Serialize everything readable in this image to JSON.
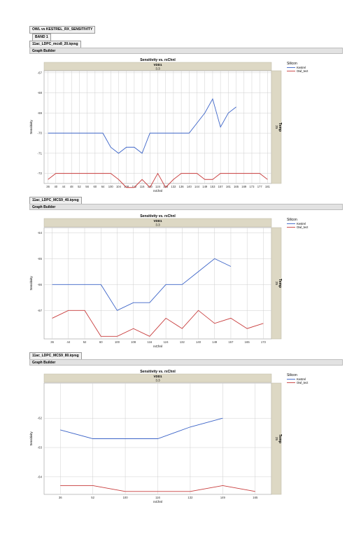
{
  "report_title": "OWL vs KESTREL_RX_SENSITIVITY",
  "band_label": "BAND 1",
  "chart_data": [
    {
      "type": "line",
      "file_name": "11ac_LDPC_mcs8_20.iqvsg",
      "panel_label": "Graph Builder",
      "title": "Sensitivity vs. rxChnl",
      "group_title": "VDD1",
      "group_value": "3.3",
      "side_label": "Temp",
      "side_value": "25",
      "xlabel": "rxChnl",
      "ylabel": "Sensitivity",
      "ylim": [
        -72.5,
        -66.9
      ],
      "yticks": [
        -67,
        -68,
        -69,
        -70,
        -71,
        -72
      ],
      "legend_title": "Silicon",
      "x": [
        "36",
        "40",
        "44",
        "48",
        "52",
        "56",
        "60",
        "64",
        "100",
        "104",
        "108",
        "112",
        "116",
        "120",
        "124",
        "128",
        "132",
        "136",
        "140",
        "144",
        "149",
        "153",
        "157",
        "161",
        "165",
        "169",
        "173",
        "177",
        "181"
      ],
      "series": [
        {
          "name": "Kestrel",
          "color": "#3c64c8",
          "values": [
            -70,
            -70,
            -70,
            -70,
            -70,
            -70,
            -70,
            -70,
            -70.7,
            -71,
            -70.7,
            -70.7,
            -71,
            -70,
            -70,
            -70,
            -70,
            -70,
            -70,
            -69.5,
            -69,
            -68.3,
            -69.7,
            -69,
            -68.7,
            null,
            null,
            null,
            null
          ]
        },
        {
          "name": "Owl_tect",
          "color": "#c83c3c",
          "values": [
            -72.3,
            -72,
            -72,
            -72,
            -72,
            -72,
            -72,
            -72,
            -72,
            -72.3,
            -72.7,
            -72.7,
            -72.3,
            -72.7,
            -72,
            -72.7,
            -72.3,
            -72,
            -72,
            -72,
            -72.3,
            -72.3,
            -72,
            -72,
            -72,
            -72,
            -72,
            -72,
            -72.3
          ]
        }
      ]
    },
    {
      "type": "line",
      "file_name": "11ac_LDPC_MCS9_40.iqvsg",
      "panel_label": "Graph Builder",
      "title": "Sensitivity vs. rxChnl",
      "group_title": "VDD1",
      "group_value": "3.3",
      "side_label": "Temp",
      "side_value": "25",
      "xlabel": "rxChnl",
      "ylabel": "Sensitivity",
      "ylim": [
        -68.1,
        -63.8
      ],
      "yticks": [
        -64,
        -65,
        -66,
        -67
      ],
      "legend_title": "Silicon",
      "x": [
        "36",
        "44",
        "52",
        "60",
        "100",
        "108",
        "116",
        "124",
        "132",
        "140",
        "149",
        "157",
        "165",
        "173"
      ],
      "series": [
        {
          "name": "Kestrel",
          "color": "#3c64c8",
          "values": [
            -66,
            -66,
            -66,
            -66,
            -67,
            -66.7,
            -66.7,
            -66,
            -66,
            -65.5,
            -65,
            -65.3,
            null,
            null
          ]
        },
        {
          "name": "Owl_tect",
          "color": "#c83c3c",
          "values": [
            -67.3,
            -67,
            -67,
            -68,
            -68,
            -67.7,
            -68,
            -67.3,
            -67.7,
            -67,
            -67.5,
            -67.3,
            -67.7,
            -67.5
          ]
        }
      ]
    },
    {
      "type": "line",
      "file_name": "11ac_LDPC_MCS9_80.iqvsg",
      "panel_label": "Graph Builder",
      "title": "Sensitivity vs. rxChnl",
      "group_title": "VDD1",
      "group_value": "3.3",
      "side_label": "Temp",
      "side_value": "25",
      "xlabel": "rxChnl",
      "ylabel": "Sensitivity",
      "ylim": [
        -64.6,
        -60.8
      ],
      "yticks": [
        -62,
        -63,
        -64
      ],
      "legend_title": "Silicon",
      "x": [
        "36",
        "52",
        "100",
        "116",
        "132",
        "149",
        "165"
      ],
      "series": [
        {
          "name": "Kestrel",
          "color": "#3c64c8",
          "values": [
            -62.4,
            -62.7,
            -62.7,
            -62.7,
            -62.3,
            -62,
            null
          ]
        },
        {
          "name": "Owl_tect",
          "color": "#c83c3c",
          "values": [
            -64.3,
            -64.3,
            -64.5,
            -64.5,
            -64.5,
            -64.3,
            -64.5
          ]
        }
      ]
    }
  ]
}
